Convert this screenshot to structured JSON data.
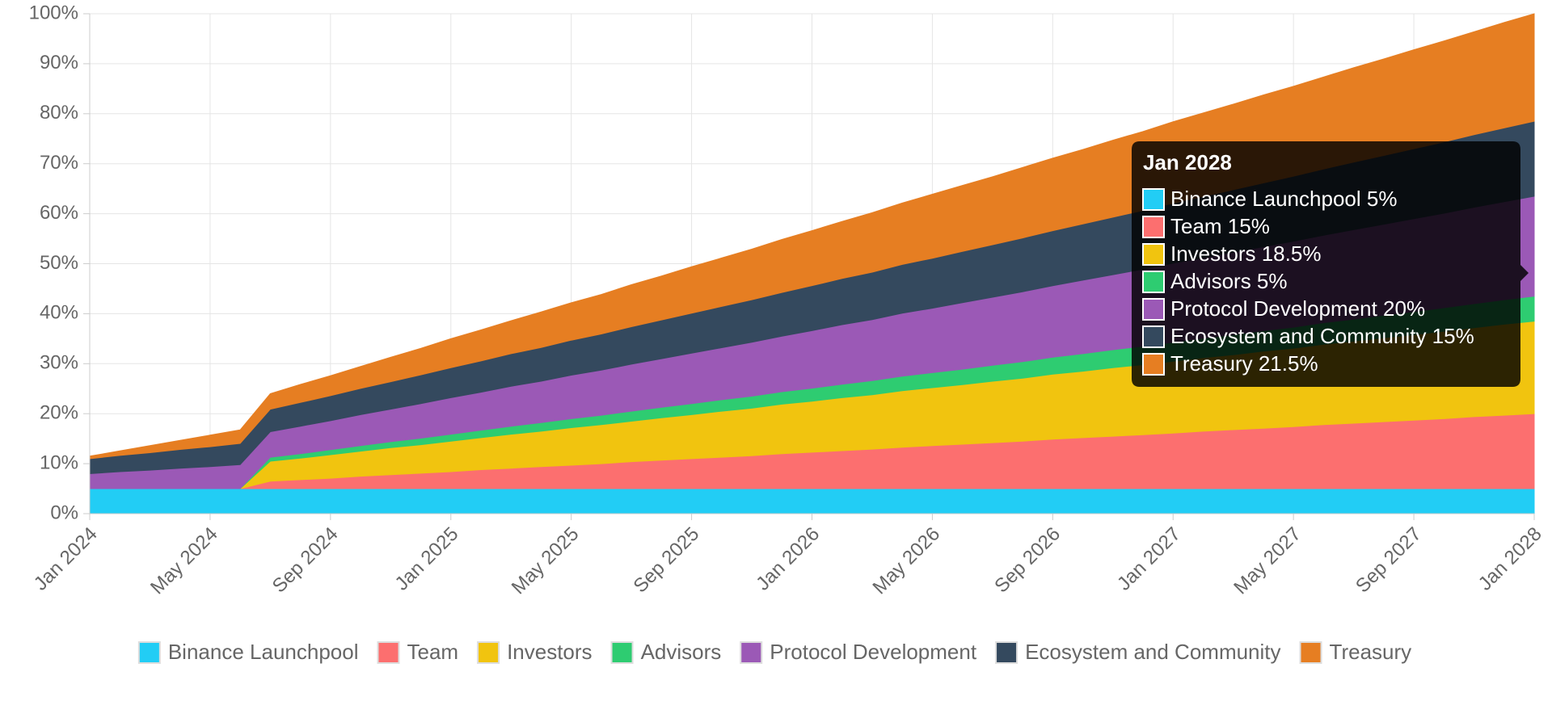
{
  "chart_data": {
    "type": "stacked_area",
    "categories": [
      "Jan 2024",
      null,
      null,
      null,
      "May 2024",
      null,
      null,
      null,
      "Sep 2024",
      null,
      null,
      null,
      "Jan 2025",
      null,
      null,
      null,
      "May 2025",
      null,
      null,
      null,
      "Sep 2025",
      null,
      null,
      null,
      "Jan 2026",
      null,
      null,
      null,
      "May 2026",
      null,
      null,
      null,
      "Sep 2026",
      null,
      null,
      null,
      "Jan 2027",
      null,
      null,
      null,
      "May 2027",
      null,
      null,
      null,
      "Sep 2027",
      null,
      null,
      null,
      "Jan 2028"
    ],
    "ylim": [
      0,
      100
    ],
    "yticks": [
      {
        "value": 0,
        "label": "0%"
      },
      {
        "value": 10,
        "label": "10%"
      },
      {
        "value": 20,
        "label": "20%"
      },
      {
        "value": 30,
        "label": "30%"
      },
      {
        "value": 40,
        "label": "40%"
      },
      {
        "value": 50,
        "label": "50%"
      },
      {
        "value": 60,
        "label": "60%"
      },
      {
        "value": 70,
        "label": "70%"
      },
      {
        "value": 80,
        "label": "80%"
      },
      {
        "value": 90,
        "label": "90%"
      },
      {
        "value": 100,
        "label": "100%"
      }
    ],
    "grid": true,
    "legend": "bottom",
    "series": [
      {
        "name": "Binance Launchpool",
        "color": "#22cdf5",
        "values": [
          5,
          5,
          5,
          5,
          5,
          5,
          5,
          5,
          5,
          5,
          5,
          5,
          5,
          5,
          5,
          5,
          5,
          5,
          5,
          5,
          5,
          5,
          5,
          5,
          5,
          5,
          5,
          5,
          5,
          5,
          5,
          5,
          5,
          5,
          5,
          5,
          5,
          5,
          5,
          5,
          5,
          5,
          5,
          5,
          5,
          5,
          5,
          5,
          5
        ]
      },
      {
        "name": "Team",
        "color": "#fc6f6f",
        "values": [
          0,
          0,
          0,
          0,
          0,
          0,
          1.5,
          1.8,
          2.1,
          2.5,
          2.8,
          3.1,
          3.4,
          3.8,
          4.1,
          4.4,
          4.7,
          5.0,
          5.4,
          5.7,
          6.0,
          6.3,
          6.6,
          7.0,
          7.3,
          7.6,
          7.9,
          8.3,
          8.6,
          8.9,
          9.2,
          9.5,
          9.9,
          10.2,
          10.5,
          10.8,
          11.1,
          11.5,
          11.8,
          12.1,
          12.4,
          12.8,
          13.1,
          13.4,
          13.7,
          14.0,
          14.4,
          14.7,
          15.0
        ]
      },
      {
        "name": "Investors",
        "color": "#f1c40f",
        "values": [
          0,
          0,
          0,
          0,
          0,
          0,
          4.0,
          4.3,
          4.7,
          5.0,
          5.4,
          5.7,
          6.1,
          6.4,
          6.8,
          7.1,
          7.5,
          7.8,
          8.1,
          8.5,
          8.8,
          9.2,
          9.5,
          9.9,
          10.2,
          10.6,
          10.9,
          11.3,
          11.6,
          11.9,
          12.3,
          12.6,
          13.0,
          13.3,
          13.7,
          14.0,
          14.4,
          14.7,
          15.0,
          15.4,
          15.7,
          16.1,
          16.4,
          16.8,
          17.1,
          17.5,
          17.8,
          18.2,
          18.5
        ]
      },
      {
        "name": "Advisors",
        "color": "#2ecc71",
        "values": [
          0,
          0,
          0,
          0,
          0,
          0,
          0.8,
          0.9,
          1.0,
          1.1,
          1.2,
          1.3,
          1.4,
          1.5,
          1.6,
          1.7,
          1.8,
          1.9,
          2.0,
          2.1,
          2.2,
          2.3,
          2.4,
          2.5,
          2.6,
          2.7,
          2.8,
          2.9,
          3.0,
          3.1,
          3.2,
          3.3,
          3.4,
          3.5,
          3.6,
          3.7,
          3.8,
          3.9,
          4.0,
          4.1,
          4.2,
          4.3,
          4.4,
          4.5,
          4.6,
          4.7,
          4.8,
          4.9,
          5.0
        ]
      },
      {
        "name": "Protocol Development",
        "color": "#9b59b6",
        "values": [
          3.0,
          3.4,
          3.7,
          4.1,
          4.4,
          4.8,
          5.1,
          5.5,
          5.8,
          6.2,
          6.5,
          6.9,
          7.3,
          7.6,
          8.0,
          8.3,
          8.7,
          9.0,
          9.4,
          9.7,
          10.1,
          10.4,
          10.8,
          11.1,
          11.5,
          11.9,
          12.2,
          12.6,
          12.9,
          13.3,
          13.6,
          14.0,
          14.3,
          14.7,
          15.0,
          15.4,
          15.8,
          16.1,
          16.5,
          16.8,
          17.2,
          17.5,
          17.9,
          18.2,
          18.6,
          18.9,
          19.3,
          19.6,
          20.0
        ]
      },
      {
        "name": "Ecosystem and Community",
        "color": "#34495e",
        "values": [
          3,
          3.25,
          3.5,
          3.75,
          4,
          4.25,
          4.5,
          4.75,
          5,
          5.25,
          5.5,
          5.75,
          6,
          6.25,
          6.5,
          6.75,
          7,
          7.25,
          7.5,
          7.75,
          8,
          8.25,
          8.5,
          8.75,
          9,
          9.25,
          9.5,
          9.75,
          10,
          10.25,
          10.5,
          10.75,
          11,
          11.25,
          11.5,
          11.75,
          12,
          12.25,
          12.5,
          12.75,
          13,
          13.25,
          13.5,
          13.75,
          14,
          14.25,
          14.5,
          14.75,
          15
        ]
      },
      {
        "name": "Treasury",
        "color": "#e67e22",
        "values": [
          0.5,
          0.9,
          1.4,
          1.8,
          2.3,
          2.7,
          3.1,
          3.6,
          4.0,
          4.4,
          4.9,
          5.3,
          5.8,
          6.2,
          6.6,
          7.1,
          7.5,
          7.9,
          8.4,
          8.8,
          9.3,
          9.7,
          10.1,
          10.6,
          11.0,
          11.4,
          11.9,
          12.3,
          12.8,
          13.2,
          13.6,
          14.1,
          14.5,
          14.9,
          15.4,
          15.8,
          16.3,
          16.7,
          17.1,
          17.6,
          18.0,
          18.4,
          18.9,
          19.3,
          19.8,
          20.2,
          20.6,
          21.1,
          21.5
        ]
      }
    ],
    "tooltip": {
      "title": "Jan 2028",
      "items": [
        "Binance Launchpool 5%",
        "Team 15%",
        "Investors 18.5%",
        "Advisors 5%",
        "Protocol Development 20%",
        "Ecosystem and Community 15%",
        "Treasury 21.5%"
      ]
    }
  }
}
